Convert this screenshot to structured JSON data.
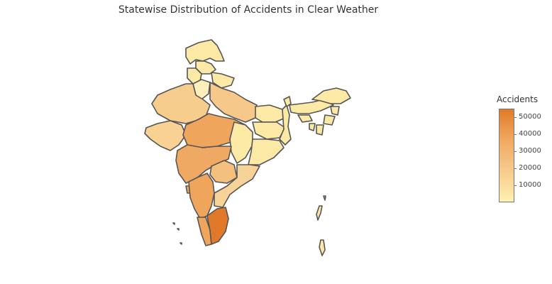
{
  "title": "Statewise Distribution of Accidents in Clear Weather",
  "colorbar": {
    "title": "Accidents",
    "ticks": [
      {
        "label": "50000",
        "value": 50000
      },
      {
        "label": "40000",
        "value": 40000
      },
      {
        "label": "30000",
        "value": 30000
      },
      {
        "label": "20000",
        "value": 20000
      },
      {
        "label": "10000",
        "value": 10000
      }
    ],
    "min": 0,
    "max": 55000,
    "colorscale": [
      "#fff1b0",
      "#f6c98a",
      "#f0a55c",
      "#e07a2a"
    ]
  },
  "chart_data": {
    "type": "choropleth",
    "colorscale_range": [
      0,
      55000
    ]
  }
}
